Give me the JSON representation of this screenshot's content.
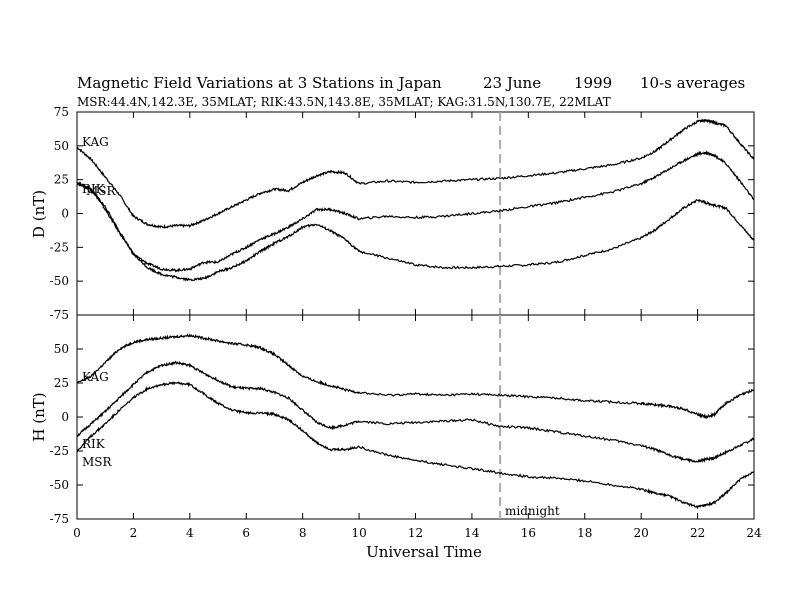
{
  "title": "Magnetic Field Variations at 3 Stations in Japan",
  "date": "23 June",
  "year": "1999",
  "averaging": "10-s averages",
  "stations_line": "MSR:44.4N,142.3E, 35MLAT;   RIK:43.5N,143.8E, 35MLAT;   KAG:31.5N,130.7E, 22MLAT",
  "chart_data": [
    {
      "type": "line",
      "panel": "D",
      "ylabel": "D (nT)",
      "xlim": [
        0,
        24
      ],
      "ylim": [
        -75,
        75
      ],
      "yticks": [
        75,
        50,
        25,
        0,
        -25,
        -50,
        -75
      ],
      "yticklabels": [
        "75",
        "50",
        "25",
        "0",
        "-25",
        "-50",
        "-75"
      ],
      "marker": {
        "x": 15,
        "style": "dashed",
        "color": "#aaaaaa"
      },
      "series_labels": [
        "KAG",
        "RIK",
        "MSR"
      ],
      "series": [
        {
          "name": "KAG",
          "x": [
            0,
            0.5,
            1,
            1.5,
            2,
            2.5,
            3,
            3.5,
            4,
            4.5,
            5,
            5.5,
            6,
            6.5,
            7,
            7.5,
            8,
            8.5,
            9,
            9.5,
            10,
            11,
            12,
            13,
            14,
            15,
            16,
            17,
            18,
            19,
            20,
            20.5,
            21,
            21.5,
            22,
            22.3,
            22.6,
            23,
            23.5,
            24
          ],
          "y": [
            49,
            40,
            27,
            14,
            -2,
            -8,
            -10,
            -9,
            -9,
            -5,
            0,
            5,
            10,
            15,
            18,
            17,
            23,
            28,
            31,
            30,
            22,
            24,
            23,
            24,
            25,
            26,
            28,
            30,
            33,
            36,
            41,
            46,
            54,
            62,
            68,
            69,
            67,
            65,
            52,
            40
          ]
        },
        {
          "name": "RIK",
          "x": [
            0,
            0.5,
            1,
            1.5,
            2,
            2.5,
            3,
            3.5,
            4,
            4.5,
            5,
            5.5,
            6,
            6.5,
            7,
            7.5,
            8,
            8.5,
            9,
            9.5,
            10,
            11,
            12,
            13,
            14,
            15,
            16,
            17,
            18,
            19,
            20,
            20.5,
            21,
            21.5,
            22,
            22.3,
            22.6,
            23,
            23.5,
            24
          ],
          "y": [
            23,
            18,
            3,
            -14,
            -30,
            -37,
            -41,
            -42,
            -41,
            -36,
            -36,
            -30,
            -25,
            -19,
            -15,
            -10,
            -4,
            3,
            3,
            0,
            -4,
            -2,
            -3,
            -2,
            0,
            2,
            5,
            8,
            12,
            16,
            22,
            27,
            33,
            39,
            44,
            45,
            43,
            37,
            24,
            10
          ]
        },
        {
          "name": "MSR",
          "x": [
            0,
            0.5,
            1,
            1.5,
            2,
            2.5,
            3,
            3.5,
            4,
            4.5,
            5,
            5.5,
            6,
            6.5,
            7,
            7.5,
            8,
            8.5,
            9,
            9.5,
            10,
            11,
            12,
            13,
            14,
            15,
            16,
            17,
            18,
            19,
            20,
            20.5,
            21,
            21.5,
            22,
            22.3,
            22.6,
            23,
            23.5,
            24
          ],
          "y": [
            22,
            18,
            5,
            -13,
            -30,
            -40,
            -45,
            -47,
            -49,
            -48,
            -43,
            -40,
            -35,
            -28,
            -22,
            -17,
            -10,
            -8,
            -13,
            -19,
            -28,
            -33,
            -38,
            -40,
            -40,
            -39,
            -38,
            -36,
            -31,
            -26,
            -18,
            -12,
            -4,
            4,
            10,
            8,
            6,
            4,
            -8,
            -20
          ]
        }
      ]
    },
    {
      "type": "line",
      "panel": "H",
      "ylabel": "H (nT)",
      "xlabel": "Universal Time",
      "xlim": [
        0,
        24
      ],
      "ylim": [
        -75,
        75
      ],
      "xticks": [
        0,
        2,
        4,
        6,
        8,
        10,
        12,
        14,
        16,
        18,
        20,
        22,
        24
      ],
      "xticklabels": [
        "0",
        "2",
        "4",
        "6",
        "8",
        "10",
        "12",
        "14",
        "16",
        "18",
        "20",
        "22",
        "24"
      ],
      "yticks": [
        50,
        25,
        0,
        -25,
        -50,
        -75
      ],
      "yticklabels": [
        "50",
        "25",
        "0",
        "-25",
        "-50",
        "-75"
      ],
      "marker": {
        "x": 15,
        "style": "dashed",
        "color": "#aaaaaa",
        "label": "midnight"
      },
      "series_labels": [
        "KAG",
        "RIK",
        "MSR"
      ],
      "series": [
        {
          "name": "KAG",
          "x": [
            0,
            0.5,
            1,
            1.5,
            2,
            2.5,
            3,
            3.5,
            4,
            4.5,
            5,
            5.5,
            6,
            6.5,
            7,
            7.5,
            8,
            8.5,
            9,
            9.5,
            10,
            11,
            12,
            13,
            14,
            15,
            16,
            17,
            18,
            19,
            20,
            20.5,
            21,
            21.5,
            22,
            22.3,
            22.6,
            23,
            23.5,
            24
          ],
          "y": [
            25,
            30,
            40,
            50,
            55,
            57,
            58,
            59,
            60,
            58,
            56,
            54,
            53,
            51,
            46,
            38,
            30,
            26,
            23,
            20,
            18,
            16,
            17,
            16,
            17,
            16,
            15,
            14,
            12,
            11,
            10,
            9,
            8,
            6,
            2,
            0,
            2,
            10,
            16,
            20
          ]
        },
        {
          "name": "RIK",
          "x": [
            0,
            0.5,
            1,
            1.5,
            2,
            2.5,
            3,
            3.5,
            4,
            4.5,
            5,
            5.5,
            6,
            6.5,
            7,
            7.5,
            8,
            8.5,
            9,
            9.5,
            10,
            11,
            12,
            13,
            14,
            15,
            16,
            17,
            18,
            19,
            20,
            20.5,
            21,
            21.5,
            22,
            22.3,
            22.6,
            23,
            23.5,
            24
          ],
          "y": [
            -14,
            -5,
            4,
            14,
            24,
            33,
            38,
            40,
            38,
            32,
            27,
            22,
            21,
            21,
            18,
            14,
            5,
            -4,
            -8,
            -6,
            -3,
            -5,
            -4,
            -3,
            -2,
            -7,
            -8,
            -11,
            -14,
            -17,
            -21,
            -24,
            -28,
            -31,
            -33,
            -31,
            -30,
            -26,
            -21,
            -16
          ]
        },
        {
          "name": "MSR",
          "x": [
            0,
            0.5,
            1,
            1.5,
            2,
            2.5,
            3,
            3.5,
            4,
            4.5,
            5,
            5.5,
            6,
            6.5,
            7,
            7.5,
            8,
            8.5,
            9,
            9.5,
            10,
            11,
            12,
            13,
            14,
            15,
            16,
            17,
            18,
            19,
            20,
            20.5,
            21,
            21.5,
            22,
            22.3,
            22.6,
            23,
            23.5,
            24
          ],
          "y": [
            -25,
            -14,
            -5,
            5,
            14,
            21,
            24,
            25,
            24,
            17,
            10,
            5,
            3,
            3,
            2,
            -2,
            -10,
            -19,
            -24,
            -24,
            -22,
            -28,
            -32,
            -35,
            -38,
            -41,
            -44,
            -45,
            -47,
            -50,
            -53,
            -56,
            -58,
            -63,
            -66,
            -65,
            -63,
            -56,
            -46,
            -40
          ]
        }
      ]
    }
  ]
}
